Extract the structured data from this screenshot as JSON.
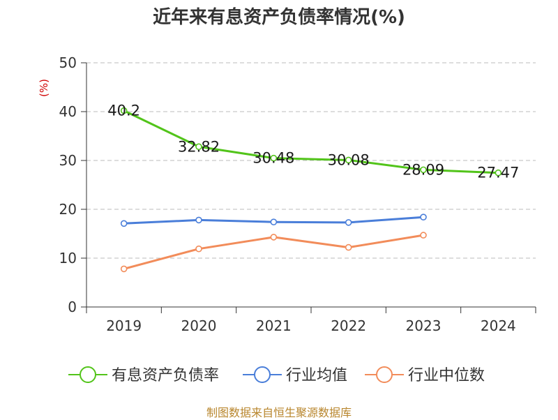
{
  "title": "近年来有息资产负债率情况(%)",
  "source": "制图数据来自恒生聚源数据库",
  "chart_data": {
    "type": "line",
    "title": "近年来有息资产负债率情况(%)",
    "ylabel": "(%)",
    "categories": [
      "2019",
      "2020",
      "2021",
      "2022",
      "2023",
      "2024"
    ],
    "ylim": [
      0,
      50
    ],
    "yticks": [
      0,
      10,
      20,
      30,
      40,
      50
    ],
    "grid": true,
    "legend_position": "bottom",
    "series": [
      {
        "name": "有息资产负债率",
        "color": "#52c41a",
        "values": [
          40.2,
          32.82,
          30.48,
          30.08,
          28.09,
          27.47
        ],
        "labels": [
          "40.2",
          "32.82",
          "30.48",
          "30.08",
          "28.09",
          "27.47"
        ]
      },
      {
        "name": "行业均值",
        "color": "#4a7ed9",
        "values": [
          17.1,
          17.8,
          17.4,
          17.3,
          18.4,
          null
        ]
      },
      {
        "name": "行业中位数",
        "color": "#f28c5a",
        "values": [
          7.8,
          11.9,
          14.3,
          12.2,
          14.7,
          null
        ]
      }
    ]
  }
}
